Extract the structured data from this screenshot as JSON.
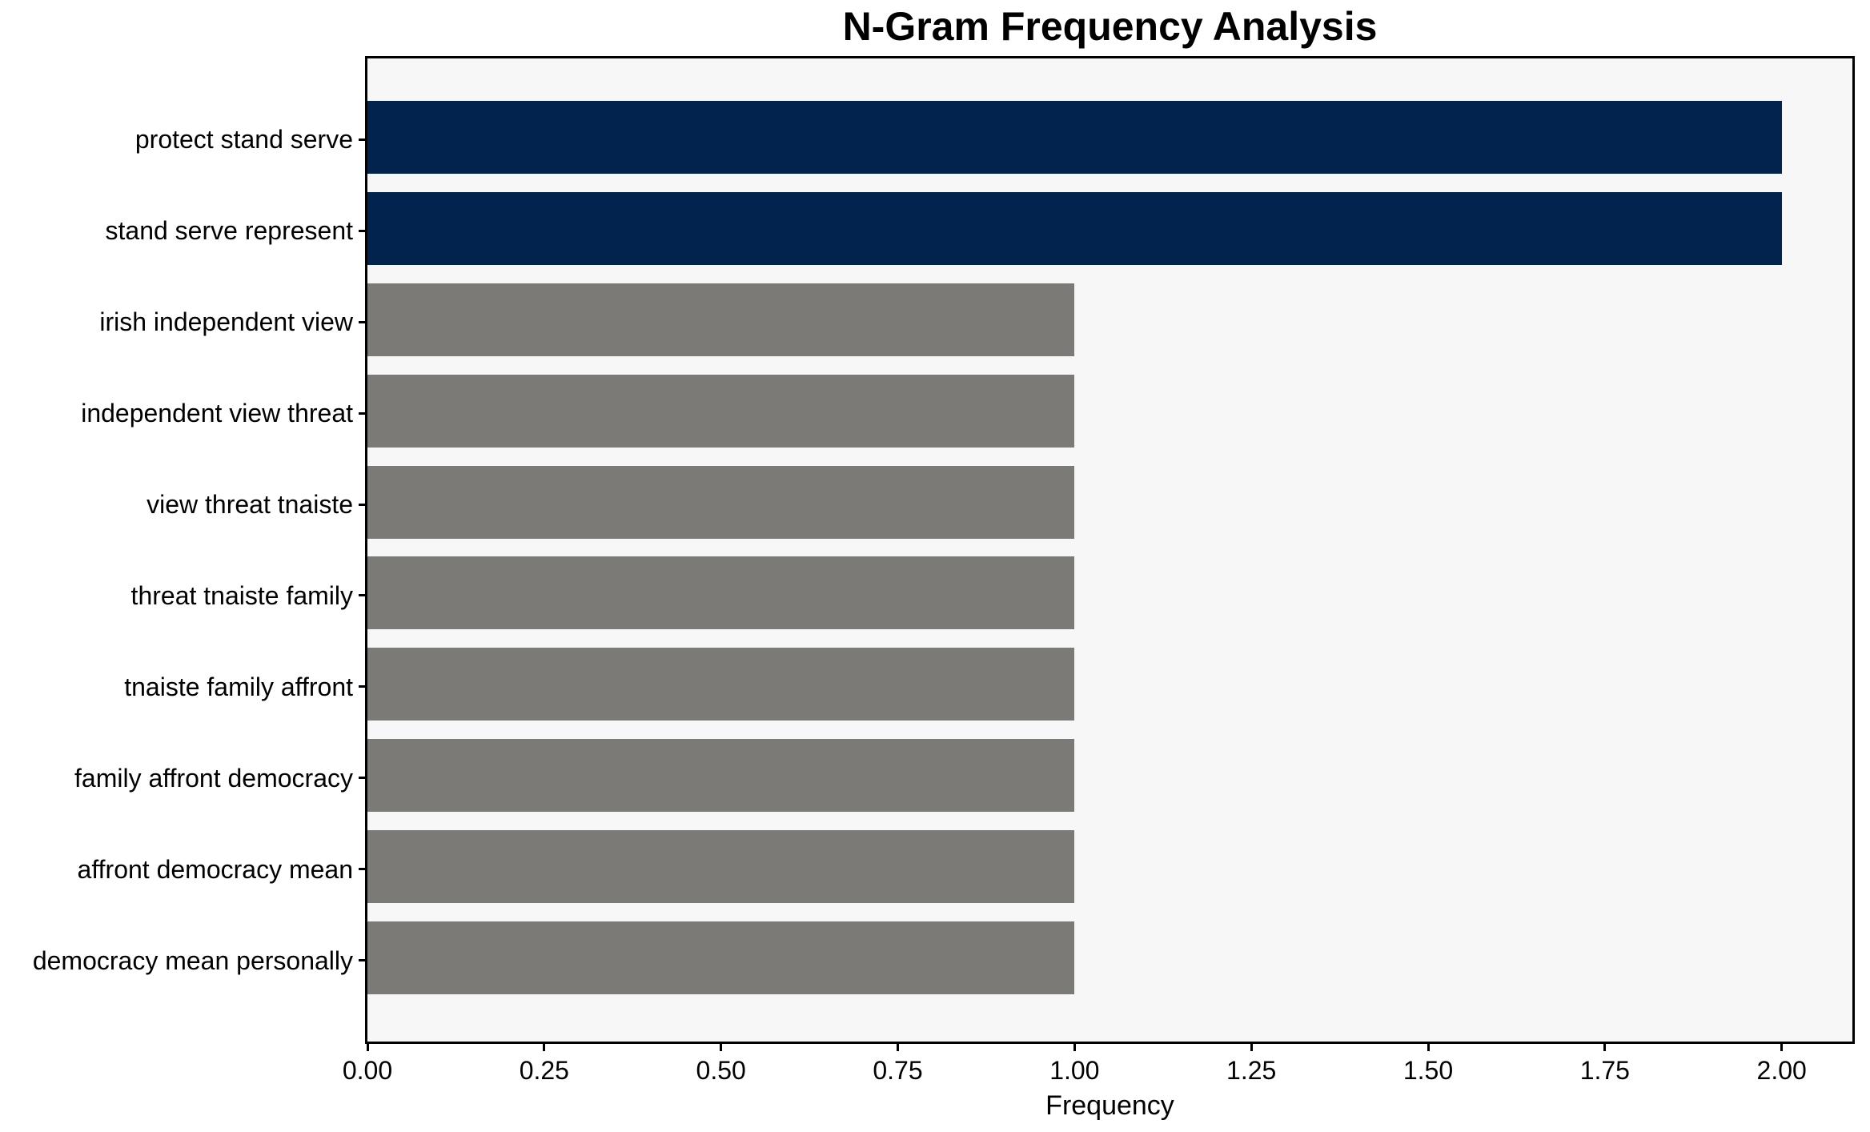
{
  "chart_data": {
    "type": "bar",
    "orientation": "horizontal",
    "title": "N-Gram Frequency Analysis",
    "xlabel": "Frequency",
    "ylabel": "",
    "categories": [
      "protect stand serve",
      "stand serve represent",
      "irish independent view",
      "independent view threat",
      "view threat tnaiste",
      "threat tnaiste family",
      "tnaiste family affront",
      "family affront democracy",
      "affront democracy mean",
      "democracy mean personally"
    ],
    "values": [
      2,
      2,
      1,
      1,
      1,
      1,
      1,
      1,
      1,
      1
    ],
    "bar_colors": [
      "#02234d",
      "#02234d",
      "#7b7a77",
      "#7b7a77",
      "#7b7a77",
      "#7b7a77",
      "#7b7a77",
      "#7b7a77",
      "#7b7a77",
      "#7b7a77"
    ],
    "xlim": [
      0,
      2.1
    ],
    "xticks": [
      0,
      0.25,
      0.5,
      0.75,
      1,
      1.25,
      1.5,
      1.75,
      2
    ],
    "xtick_labels": [
      "0.00",
      "0.25",
      "0.50",
      "0.75",
      "1.00",
      "1.25",
      "1.50",
      "1.75",
      "2.00"
    ],
    "grid": false,
    "legend": "none",
    "colors": {
      "highlight_bar": "#02234d",
      "default_bar": "#7b7a77",
      "plot_background": "#f7f7f7",
      "figure_background": "#ffffff",
      "axis": "#000000",
      "text": "#000000"
    }
  }
}
